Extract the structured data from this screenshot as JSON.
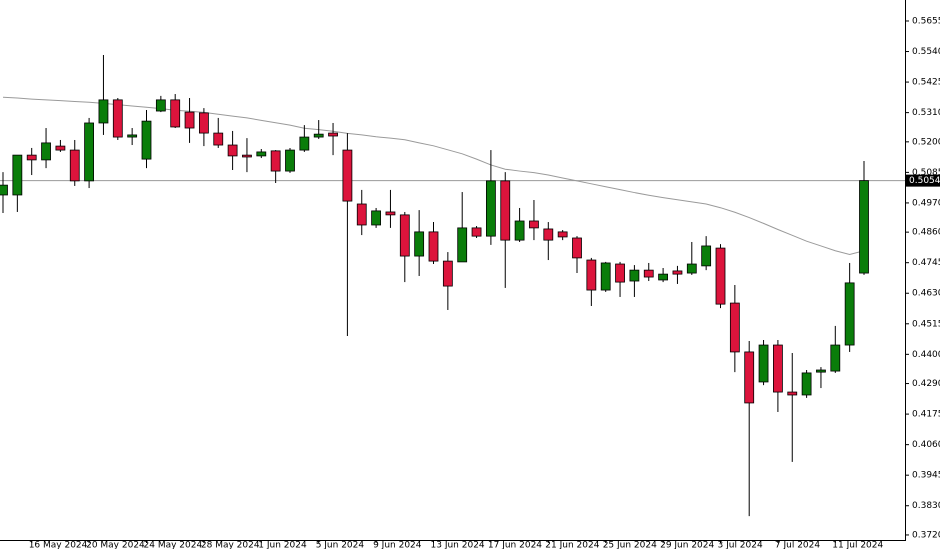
{
  "chart_data": {
    "type": "candlestick",
    "categories": [
      null,
      null,
      "16 May 2024",
      null,
      null,
      null,
      "20 May 2024",
      null,
      null,
      null,
      "24 May 2024",
      null,
      null,
      null,
      "28 May 2024",
      null,
      null,
      null,
      "1 Jun 2024",
      null,
      null,
      null,
      "5 Jun 2024",
      null,
      null,
      null,
      "9 Jun 2024",
      null,
      null,
      null,
      "13 Jun 2024",
      null,
      null,
      null,
      "17 Jun 2024",
      null,
      null,
      null,
      "21 Jun 2024",
      null,
      null,
      null,
      "25 Jun 2024",
      null,
      null,
      null,
      "29 Jun 2024",
      null,
      null,
      null,
      "3 Jul 2024",
      null,
      null,
      null,
      "7 Jul 2024",
      null,
      null,
      null,
      "11 Jul 2024",
      null,
      null
    ],
    "open": [
      0.5,
      0.5,
      0.515,
      0.5132,
      0.5184,
      0.5169,
      0.5053,
      0.5271,
      0.5358,
      0.5218,
      0.5135,
      0.5316,
      0.5358,
      0.5312,
      0.5309,
      0.5233,
      0.5188,
      0.515,
      0.5147,
      0.5166,
      0.509,
      0.5169,
      0.5218,
      0.5233,
      0.5169,
      0.4966,
      0.4887,
      0.4936,
      0.4925,
      0.477,
      0.4861,
      0.4751,
      0.4748,
      0.4876,
      0.4845,
      0.5053,
      0.483,
      0.4902,
      0.4872,
      0.4861,
      0.4838,
      0.4755,
      0.4642,
      0.474,
      0.4676,
      0.4717,
      0.468,
      0.4714,
      0.4706,
      0.4733,
      0.48,
      0.4593,
      0.4409,
      0.4296,
      0.4435,
      0.4258,
      0.4247,
      0.4333,
      0.4337,
      0.4435,
      0.4706
    ],
    "high": [
      0.5086,
      0.515,
      0.5177,
      0.5252,
      0.5207,
      0.5207,
      0.529,
      0.5527,
      0.5365,
      0.5252,
      0.532,
      0.5373,
      0.538,
      0.5365,
      0.5327,
      0.529,
      0.5241,
      0.5214,
      0.5173,
      0.5169,
      0.5177,
      0.5263,
      0.5282,
      0.5271,
      0.5233,
      0.5019,
      0.4951,
      0.5019,
      0.4936,
      0.4943,
      0.4898,
      0.4785,
      0.5011,
      0.4883,
      0.5169,
      0.5086,
      0.4951,
      0.4981,
      0.4898,
      0.4868,
      0.4845,
      0.4763,
      0.4748,
      0.4748,
      0.4736,
      0.4744,
      0.4725,
      0.4733,
      0.4823,
      0.4845,
      0.4815,
      0.4661,
      0.445,
      0.4454,
      0.4454,
      0.4405,
      0.4341,
      0.4352,
      0.4507,
      0.4744,
      0.5128
    ],
    "low": [
      0.4932,
      0.4936,
      0.5075,
      0.5101,
      0.5162,
      0.5034,
      0.5026,
      0.5226,
      0.5207,
      0.5188,
      0.5101,
      0.5312,
      0.5252,
      0.5196,
      0.5184,
      0.5177,
      0.5094,
      0.5086,
      0.5139,
      0.5045,
      0.5083,
      0.5162,
      0.5211,
      0.515,
      0.4469,
      0.4849,
      0.4876,
      0.4876,
      0.4672,
      0.4695,
      0.474,
      0.4567,
      0.4748,
      0.4838,
      0.4812,
      0.465,
      0.4823,
      0.483,
      0.4755,
      0.483,
      0.4706,
      0.4582,
      0.4635,
      0.4616,
      0.4616,
      0.4676,
      0.4672,
      0.4665,
      0.4699,
      0.4717,
      0.4574,
      0.4333,
      0.3791,
      0.4284,
      0.4183,
      0.3995,
      0.4236,
      0.4273,
      0.433,
      0.4409,
      0.4699
    ],
    "close": [
      0.5037,
      0.515,
      0.5132,
      0.5196,
      0.5169,
      0.5053,
      0.5271,
      0.5358,
      0.5218,
      0.5226,
      0.5278,
      0.5358,
      0.5256,
      0.5252,
      0.5233,
      0.5188,
      0.5147,
      0.5143,
      0.5162,
      0.509,
      0.5169,
      0.5218,
      0.5229,
      0.5222,
      0.4977,
      0.4887,
      0.494,
      0.4925,
      0.477,
      0.4861,
      0.4751,
      0.4657,
      0.4876,
      0.4845,
      0.5053,
      0.483,
      0.4902,
      0.4876,
      0.483,
      0.4842,
      0.4763,
      0.4642,
      0.4744,
      0.4672,
      0.4717,
      0.4691,
      0.4702,
      0.4702,
      0.474,
      0.4808,
      0.4589,
      0.4409,
      0.4217,
      0.4435,
      0.4258,
      0.4247,
      0.433,
      0.4341,
      0.4435,
      0.4669,
      0.5054
    ],
    "up_color": "#0a7d0a",
    "down_color": "#dc143c",
    "overlays": [
      {
        "type": "line",
        "color": "#9a9a9a",
        "values": [
          0.5368,
          0.5365,
          0.5361,
          0.5358,
          0.5355,
          0.5352,
          0.5349,
          0.5345,
          0.534,
          0.5335,
          0.533,
          0.5325,
          0.5319,
          0.5315,
          0.5311,
          0.5304,
          0.5297,
          0.529,
          0.5281,
          0.5272,
          0.5263,
          0.5251,
          0.5246,
          0.524,
          0.5232,
          0.5226,
          0.5219,
          0.5214,
          0.5208,
          0.5196,
          0.5185,
          0.517,
          0.5155,
          0.5135,
          0.5113,
          0.5097,
          0.509,
          0.5084,
          0.5075,
          0.5064,
          0.5053,
          0.5042,
          0.5031,
          0.502,
          0.5009,
          0.4999,
          0.499,
          0.4982,
          0.4974,
          0.4966,
          0.4952,
          0.4935,
          0.4915,
          0.4893,
          0.487,
          0.4848,
          0.4826,
          0.4808,
          0.479,
          0.4776,
          0.479
        ]
      }
    ],
    "current_price": 0.5054,
    "current_price_color": "#9a9a9a",
    "ylim": [
      0.3701,
      0.5734
    ],
    "yticks": [
      {
        "value": 0.5655,
        "label": "0.5655"
      },
      {
        "value": 0.554,
        "label": "0.5540"
      },
      {
        "value": 0.5425,
        "label": "0.5425"
      },
      {
        "value": 0.531,
        "label": "0.5310"
      },
      {
        "value": 0.52,
        "label": "0.5200"
      },
      {
        "value": 0.5085,
        "label": "0.5085"
      },
      {
        "value": 0.497,
        "label": "0.4970"
      },
      {
        "value": 0.486,
        "label": "0.4860"
      },
      {
        "value": 0.4745,
        "label": "0.4745"
      },
      {
        "value": 0.463,
        "label": "0.4630"
      },
      {
        "value": 0.4515,
        "label": "0.4515"
      },
      {
        "value": 0.44,
        "label": "0.4400"
      },
      {
        "value": 0.429,
        "label": "0.4290"
      },
      {
        "value": 0.4175,
        "label": "0.4175"
      },
      {
        "value": 0.406,
        "label": "0.4060"
      },
      {
        "value": 0.3945,
        "label": "0.3945"
      },
      {
        "value": 0.383,
        "label": "0.3830"
      },
      {
        "value": 0.372,
        "label": "0.3720"
      }
    ]
  }
}
